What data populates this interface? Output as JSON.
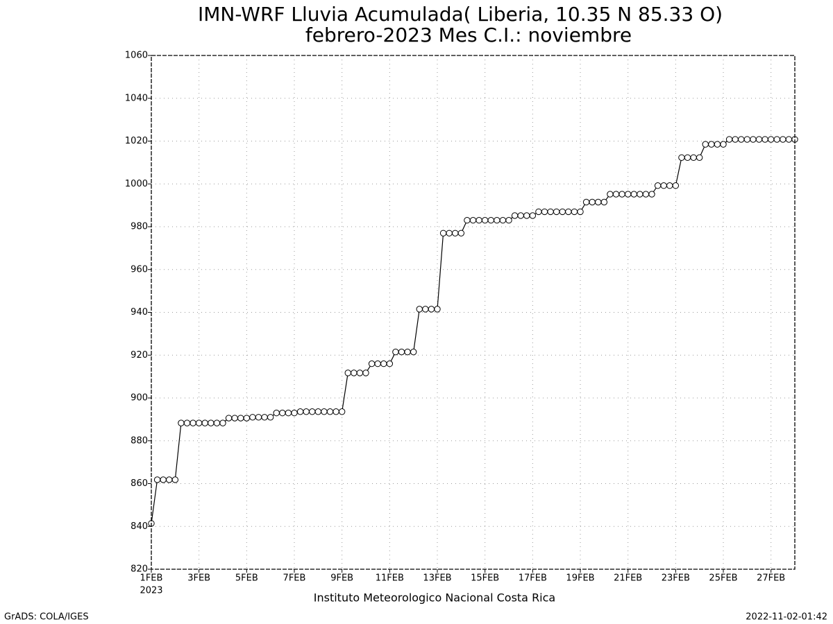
{
  "chart_data": {
    "type": "line",
    "title": "IMN-WRF  Lluvia Acumulada( Liberia, 10.35  N 85.33  O)",
    "subtitle": "febrero-2023 Mes C.I.: noviembre",
    "footer": "Instituto Meteorologico Nacional Costa Rica",
    "credit": "GrADS: COLA/IGES",
    "timestamp": "2022-11-02-01:42",
    "x_year": "2023",
    "color": "#000000",
    "marker": "circle",
    "grid": true,
    "x": [
      0,
      0.25,
      0.5,
      0.75,
      1,
      1.25,
      1.5,
      1.75,
      2,
      2.25,
      2.5,
      2.75,
      3,
      3.25,
      3.5,
      3.75,
      4,
      4.25,
      4.5,
      4.75,
      5,
      5.25,
      5.5,
      5.75,
      6,
      6.25,
      6.5,
      6.75,
      7,
      7.25,
      7.5,
      7.75,
      8,
      8.25,
      8.5,
      8.75,
      9,
      9.25,
      9.5,
      9.75,
      10,
      10.25,
      10.5,
      10.75,
      11,
      11.25,
      11.5,
      11.75,
      12,
      12.25,
      12.5,
      12.75,
      13,
      13.25,
      13.5,
      13.75,
      14,
      14.25,
      14.5,
      14.75,
      15,
      15.25,
      15.5,
      15.75,
      16,
      16.25,
      16.5,
      16.75,
      17,
      17.25,
      17.5,
      17.75,
      18,
      18.25,
      18.5,
      18.75,
      19,
      19.25,
      19.5,
      19.75,
      20,
      20.25,
      20.5,
      20.75,
      21,
      21.25,
      21.5,
      21.75,
      22,
      22.25,
      22.5,
      22.75,
      23,
      23.25,
      23.5,
      23.75,
      24,
      24.25,
      24.5,
      24.75,
      25,
      25.25,
      25.5,
      25.75,
      26,
      26.25,
      26.5,
      26.75,
      27
    ],
    "values": [
      841.4,
      861.8,
      861.8,
      861.8,
      861.8,
      888.3,
      888.3,
      888.3,
      888.3,
      888.3,
      888.3,
      888.3,
      888.3,
      890.6,
      890.6,
      890.6,
      890.6,
      891.0,
      891.0,
      891.0,
      891.0,
      893.0,
      893.0,
      893.0,
      893.0,
      893.6,
      893.6,
      893.6,
      893.6,
      893.6,
      893.6,
      893.6,
      893.6,
      911.7,
      911.7,
      911.7,
      911.7,
      916.0,
      916.0,
      916.0,
      916.0,
      921.5,
      921.5,
      921.5,
      921.5,
      941.5,
      941.5,
      941.5,
      941.5,
      977.0,
      977.0,
      977.0,
      977.0,
      983.0,
      983.0,
      983.0,
      983.0,
      983.0,
      983.0,
      983.0,
      983.0,
      985.2,
      985.2,
      985.2,
      985.2,
      987.0,
      987.0,
      987.0,
      987.0,
      987.0,
      987.0,
      987.0,
      987.0,
      991.5,
      991.5,
      991.5,
      991.5,
      995.2,
      995.2,
      995.2,
      995.2,
      995.2,
      995.2,
      995.2,
      995.2,
      999.2,
      999.2,
      999.2,
      999.2,
      1012.3,
      1012.3,
      1012.3,
      1012.3,
      1018.5,
      1018.5,
      1018.5,
      1018.5,
      1020.8,
      1020.8,
      1020.8,
      1020.8,
      1020.8,
      1020.8,
      1020.8,
      1020.8,
      1020.8,
      1020.8,
      1020.8,
      1020.8
    ],
    "xlim": [
      0,
      27
    ],
    "xticks": [
      {
        "value": 0,
        "label": "1FEB"
      },
      {
        "value": 2,
        "label": "3FEB"
      },
      {
        "value": 4,
        "label": "5FEB"
      },
      {
        "value": 6,
        "label": "7FEB"
      },
      {
        "value": 8,
        "label": "9FEB"
      },
      {
        "value": 10,
        "label": "11FEB"
      },
      {
        "value": 12,
        "label": "13FEB"
      },
      {
        "value": 14,
        "label": "15FEB"
      },
      {
        "value": 16,
        "label": "17FEB"
      },
      {
        "value": 18,
        "label": "19FEB"
      },
      {
        "value": 20,
        "label": "21FEB"
      },
      {
        "value": 22,
        "label": "23FEB"
      },
      {
        "value": 24,
        "label": "25FEB"
      },
      {
        "value": 26,
        "label": "27FEB"
      }
    ],
    "ylim": [
      820,
      1060
    ],
    "yticks": [
      820,
      840,
      860,
      880,
      900,
      920,
      940,
      960,
      980,
      1000,
      1020,
      1040,
      1060
    ]
  }
}
